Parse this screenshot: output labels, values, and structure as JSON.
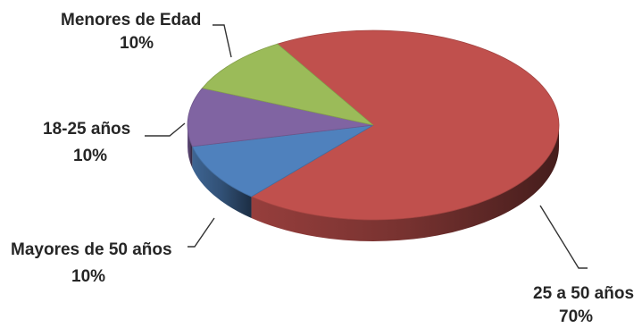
{
  "chart_data": {
    "type": "pie",
    "title": "",
    "style": "3d",
    "slices": [
      {
        "label": "25 a 50 años",
        "value": 70,
        "value_label": "70%",
        "color": "#c0504d"
      },
      {
        "label": "Menores de Edad",
        "value": 10,
        "value_label": "10%",
        "color": "#4f81bd"
      },
      {
        "label": "18-25 años",
        "value": 10,
        "value_label": "10%",
        "color": "#8064a2"
      },
      {
        "label": "Mayores de 50 años",
        "value": 10,
        "value_label": "10%",
        "color": "#9bbb59"
      }
    ],
    "legend": "none",
    "data_labels": "outside-with-leader-lines"
  }
}
